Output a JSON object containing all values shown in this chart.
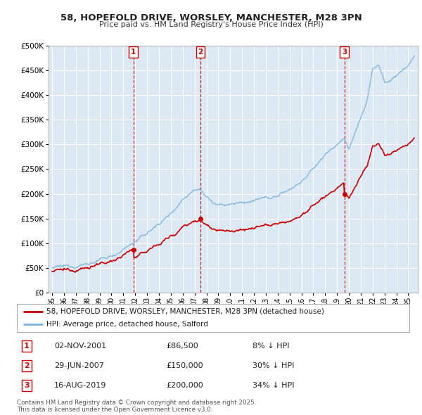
{
  "title_line1": "58, HOPEFOLD DRIVE, WORSLEY, MANCHESTER, M28 3PN",
  "title_line2": "Price paid vs. HM Land Registry's House Price Index (HPI)",
  "background_color": "#ffffff",
  "plot_bg_color": "#dce9f5",
  "grid_color": "#ffffff",
  "hpi_color": "#7ab3d9",
  "price_color": "#cc0000",
  "transactions": [
    {
      "num": 1,
      "date_num": 2001.84,
      "price": 86500,
      "label": "1",
      "date_str": "02-NOV-2001",
      "pct": "8% ↓ HPI"
    },
    {
      "num": 2,
      "date_num": 2007.49,
      "price": 150000,
      "label": "2",
      "date_str": "29-JUN-2007",
      "pct": "30% ↓ HPI"
    },
    {
      "num": 3,
      "date_num": 2019.62,
      "price": 200000,
      "label": "3",
      "date_str": "16-AUG-2019",
      "pct": "34% ↓ HPI"
    }
  ],
  "legend_label_price": "58, HOPEFOLD DRIVE, WORSLEY, MANCHESTER, M28 3PN (detached house)",
  "legend_label_hpi": "HPI: Average price, detached house, Salford",
  "footnote": "Contains HM Land Registry data © Crown copyright and database right 2025.\nThis data is licensed under the Open Government Licence v3.0.",
  "ylim": [
    0,
    500000
  ],
  "yticks": [
    0,
    50000,
    100000,
    150000,
    200000,
    250000,
    300000,
    350000,
    400000,
    450000,
    500000
  ],
  "xlim_start": 1994.7,
  "xlim_end": 2025.8
}
